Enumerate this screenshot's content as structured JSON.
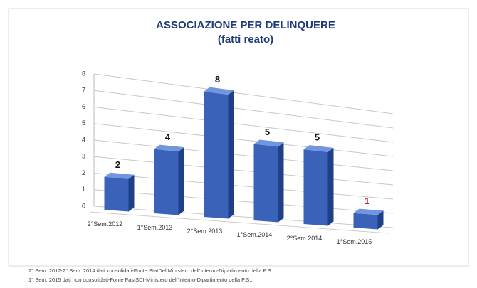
{
  "chart_data": {
    "type": "bar3d",
    "title": "ASSOCIAZIONE PER DELINQUERE",
    "subtitle": "(fatti reato)",
    "categories": [
      "2°Sem.2012",
      "1°Sem.2013",
      "2°Sem.2013",
      "1°Sem.2014",
      "2°Sem.2014",
      "1°Sem.2015"
    ],
    "values": [
      2,
      4,
      8,
      5,
      5,
      1
    ],
    "color": "#3a62b8",
    "value_label_colors": [
      "#111111",
      "#111111",
      "#111111",
      "#111111",
      "#111111",
      "#c0202a"
    ],
    "ylim": [
      0,
      8
    ],
    "yticks": [
      0,
      1,
      2,
      3,
      4,
      5,
      6,
      7,
      8
    ],
    "grid": true,
    "notes": [
      "2° Sem. 2012-2° Sem. 2014 dati consolidati-Fonte StatDel Ministero dell'Interno-Dipartimento della P.S..",
      "1° Sem. 2015 dati non consolidati-Fonte FastSDI-Ministero dell'Interno-Dipartimento della P.S.."
    ]
  }
}
